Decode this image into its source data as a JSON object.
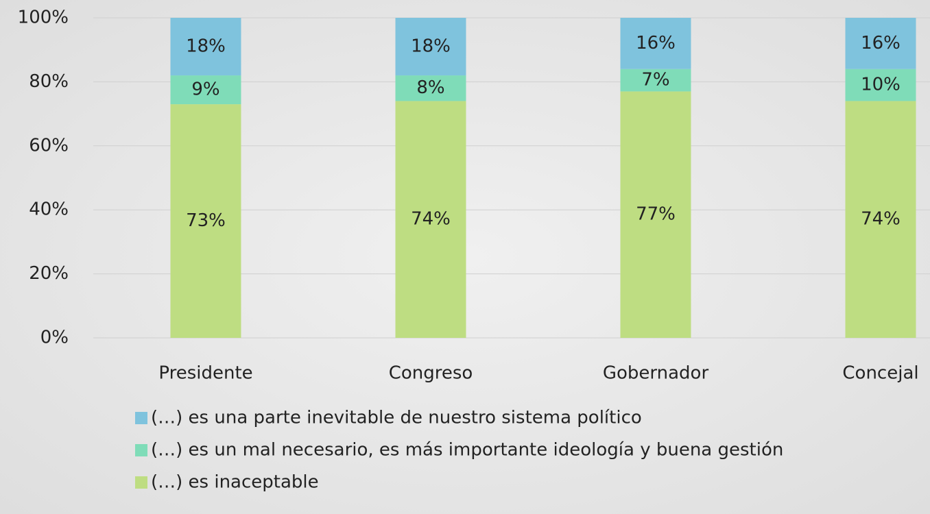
{
  "chart_data": {
    "type": "stacked_bar",
    "categories": [
      "Presidente",
      "Congreso",
      "Gobernador",
      "Concejal"
    ],
    "series": [
      {
        "name": "(…) es una parte inevitable de nuestro sistema político",
        "color": "#7fc3dd",
        "values": [
          18,
          18,
          16,
          16
        ],
        "value_labels": [
          "18%",
          "18%",
          "16%",
          "16%"
        ]
      },
      {
        "name": "(…) es un mal necesario, es más importante ideología y buena gestión",
        "color": "#7fdcb8",
        "values": [
          9,
          8,
          7,
          10
        ],
        "value_labels": [
          "9%",
          "8%",
          "7%",
          "10%"
        ]
      },
      {
        "name": "(…) es inaceptable",
        "color": "#bedd82",
        "values": [
          73,
          74,
          77,
          74
        ],
        "value_labels": [
          "73%",
          "74%",
          "77%",
          "74%"
        ]
      }
    ],
    "ylim": [
      0,
      100
    ],
    "yticks": [
      {
        "value": 0,
        "label": "0%"
      },
      {
        "value": 20,
        "label": "20%"
      },
      {
        "value": 40,
        "label": "40%"
      },
      {
        "value": 60,
        "label": "60%"
      },
      {
        "value": 80,
        "label": "80%"
      },
      {
        "value": 100,
        "label": "100%"
      }
    ],
    "grid": true
  }
}
